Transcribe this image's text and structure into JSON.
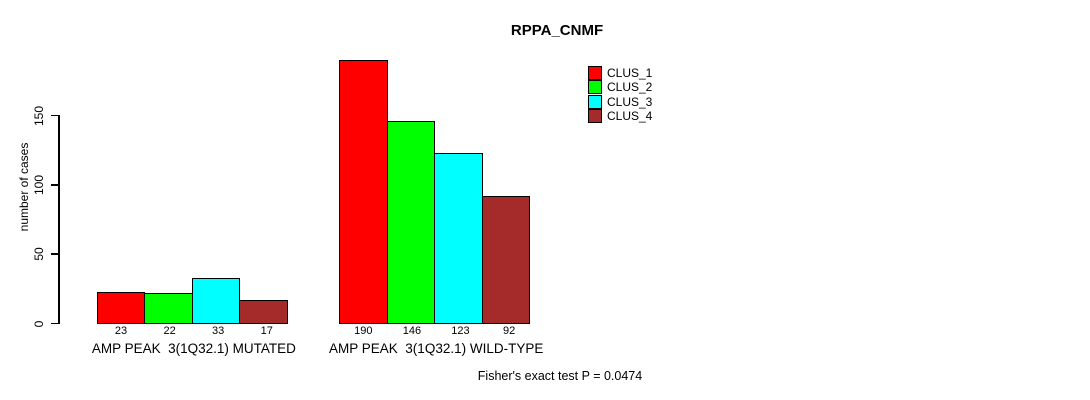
{
  "title": "RPPA_CNMF",
  "chart_data": {
    "type": "bar",
    "title": "RPPA_CNMF",
    "xlabel": "",
    "ylabel": "number of cases",
    "ylim": [
      0,
      190
    ],
    "yticks": [
      0,
      50,
      100,
      150
    ],
    "grid": false,
    "legend_position": "top-right",
    "legend": [
      {
        "label": "CLUS_1",
        "color": "#FF0000"
      },
      {
        "label": "CLUS_2",
        "color": "#00FF00"
      },
      {
        "label": "CLUS_3",
        "color": "#00FFFF"
      },
      {
        "label": "CLUS_4",
        "color": "#A52A2A"
      }
    ],
    "groups": [
      {
        "label": "AMP PEAK  3(1Q32.1) MUTATED",
        "values": [
          23,
          22,
          33,
          17
        ]
      },
      {
        "label": "AMP PEAK  3(1Q32.1) WILD-TYPE",
        "values": [
          190,
          146,
          123,
          92
        ]
      }
    ],
    "footnote": "Fisher's exact test P = 0.0474"
  }
}
